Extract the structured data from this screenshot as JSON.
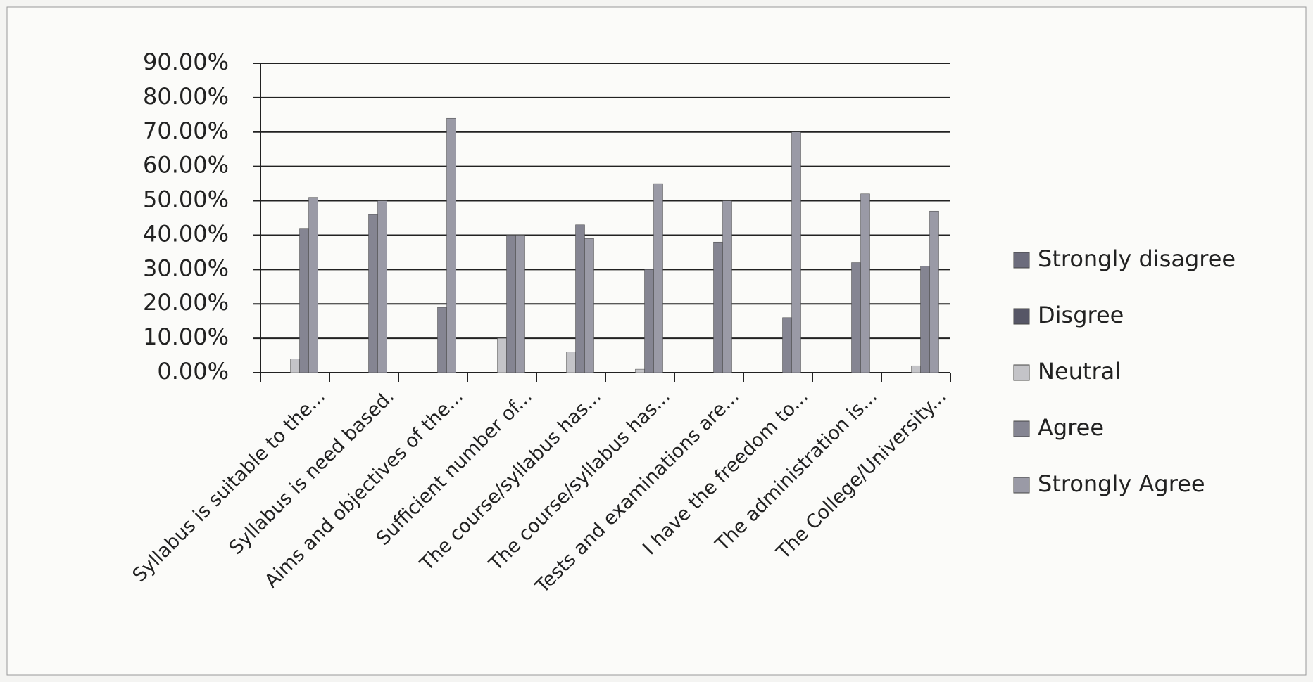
{
  "chart_data": {
    "type": "bar",
    "categories": [
      "Syllabus is suitable to the...",
      "Syllabus is need based.",
      "Aims and objectives of the...",
      "Sufficient number of...",
      "The course/syllabus has...",
      "The course/syllabus has...",
      "Tests and examinations are...",
      "I have the freedom to...",
      "The administration is...",
      "The College/University..."
    ],
    "series": [
      {
        "name": "Strongly disagree",
        "color": "#6c6c7c",
        "values": [
          0,
          0,
          0,
          0,
          0,
          0,
          0,
          0,
          0,
          0
        ]
      },
      {
        "name": "Disgree",
        "color": "#565666",
        "values": [
          0,
          0,
          0,
          0,
          0,
          0,
          0,
          0,
          0,
          0
        ]
      },
      {
        "name": "Neutral",
        "color": "#c4c4c8",
        "values": [
          4,
          0,
          0,
          10,
          6,
          1,
          0,
          0,
          0,
          2
        ]
      },
      {
        "name": "Agree",
        "color": "#858592",
        "values": [
          42,
          46,
          19,
          40,
          43,
          30,
          38,
          16,
          32,
          31
        ]
      },
      {
        "name": "Strongly Agree",
        "color": "#9a9aa6",
        "values": [
          51,
          50,
          74,
          40,
          39,
          55,
          50,
          70,
          52,
          47
        ]
      }
    ],
    "ylim": [
      0,
      90
    ],
    "yticks": [
      {
        "value": 0,
        "label": "0.00%"
      },
      {
        "value": 10,
        "label": "10.00%"
      },
      {
        "value": 20,
        "label": "20.00%"
      },
      {
        "value": 30,
        "label": "30.00%"
      },
      {
        "value": 40,
        "label": "40.00%"
      },
      {
        "value": 50,
        "label": "50.00%"
      },
      {
        "value": 60,
        "label": "60.00%"
      },
      {
        "value": 70,
        "label": "70.00%"
      },
      {
        "value": 80,
        "label": "80.00%"
      },
      {
        "value": 90,
        "label": "90.00%"
      }
    ],
    "grid": true,
    "legend": "right"
  }
}
